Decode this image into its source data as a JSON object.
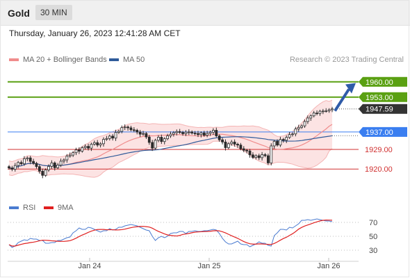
{
  "header": {
    "symbol": "Gold",
    "timeframe": "30 MIN"
  },
  "datetime": "Thursday, January 26, 2023 12:41:28 AM CET",
  "legend": {
    "ma20": {
      "label": "MA 20 + Bollinger Bands",
      "color": "#f08c8c"
    },
    "ma50": {
      "label": "MA 50",
      "color": "#2f5b9a"
    },
    "credit": "Research © 2023 Trading Central"
  },
  "levels": [
    {
      "value": 1960.0,
      "label": "1960.00",
      "kind": "target",
      "color": "#5aa012"
    },
    {
      "value": 1953.0,
      "label": "1953.00",
      "kind": "target",
      "color": "#5aa012"
    },
    {
      "value": 1947.59,
      "label": "1947.59",
      "kind": "last",
      "color": "#333333"
    },
    {
      "value": 1937.0,
      "label": "1937.00",
      "kind": "pivot",
      "color": "#3a7ef0"
    },
    {
      "value": 1929.0,
      "label": "1929.00",
      "kind": "support",
      "color": "#d03030"
    },
    {
      "value": 1920.0,
      "label": "1920.00",
      "kind": "support",
      "color": "#d03030"
    }
  ],
  "rsi_legend": {
    "rsi": {
      "label": "RSI",
      "color": "#4a7bd0"
    },
    "ma9": {
      "label": "9MA",
      "color": "#e02020"
    }
  },
  "rsi_levels": [
    "70",
    "50",
    "30"
  ],
  "xaxis": [
    "Jan 24",
    "Jan 25",
    "Jan 26"
  ],
  "chart_data": {
    "type": "line",
    "price_range": [
      1914,
      1966
    ],
    "rsi_range": [
      20,
      80
    ],
    "close": [
      1920.5,
      1919.9,
      1921.6,
      1923.0,
      1922.4,
      1924.7,
      1925.1,
      1923.5,
      1922.6,
      1921.1,
      1919.0,
      1917.1,
      1919.6,
      1921.2,
      1922.8,
      1920.6,
      1921.8,
      1923.6,
      1924.2,
      1925.9,
      1926.4,
      1927.5,
      1928.8,
      1928.2,
      1929.8,
      1930.4,
      1929.6,
      1931.4,
      1932.1,
      1931.0,
      1931.6,
      1933.6,
      1934.0,
      1935.1,
      1934.2,
      1936.8,
      1937.3,
      1939.0,
      1939.3,
      1938.9,
      1938.0,
      1937.8,
      1937.0,
      1936.0,
      1936.3,
      1934.7,
      1932.2,
      1929.6,
      1933.2,
      1934.6,
      1932.6,
      1933.9,
      1935.2,
      1936.0,
      1936.7,
      1937.2,
      1936.8,
      1936.2,
      1936.9,
      1937.0,
      1936.5,
      1936.3,
      1935.8,
      1936.6,
      1935.5,
      1936.3,
      1936.9,
      1937.8,
      1935.2,
      1933.4,
      1932.4,
      1929.8,
      1931.6,
      1932.4,
      1931.4,
      1931.0,
      1929.3,
      1928.6,
      1928.3,
      1926.5,
      1925.3,
      1926.1,
      1925.2,
      1926.6,
      1926.1,
      1922.8,
      1930.6,
      1932.7,
      1931.0,
      1933.6,
      1933.2,
      1934.5,
      1935.8,
      1936.1,
      1938.4,
      1939.1,
      1939.8,
      1941.8,
      1943.4,
      1944.4,
      1945.7,
      1945.5,
      1946.5,
      1946.6,
      1946.7,
      1947.2,
      1947.6
    ],
    "rsi": [
      38,
      34,
      36,
      41,
      43,
      45,
      44,
      47,
      46,
      46,
      44,
      44,
      40,
      40,
      41,
      41,
      44,
      44,
      46,
      48,
      49,
      55,
      58,
      62,
      60,
      60,
      63,
      62,
      60,
      58,
      56,
      58,
      58,
      61,
      59,
      60,
      63,
      63,
      65,
      66,
      67,
      66,
      65,
      63,
      61,
      59,
      58,
      50,
      44,
      48,
      50,
      48,
      50,
      54,
      55,
      55,
      57,
      57,
      54,
      57,
      57,
      58,
      57,
      57,
      58,
      58,
      59,
      60,
      59,
      54,
      47,
      42,
      39,
      39,
      41,
      43,
      39,
      38,
      38,
      35,
      37,
      39,
      42,
      40,
      40,
      37,
      36,
      51,
      55,
      60,
      60,
      59,
      63,
      62,
      65,
      68,
      73,
      73,
      74,
      73,
      74,
      75,
      74,
      73,
      72,
      72,
      71
    ],
    "annotation": "arrow pointing toward 1960.00 target"
  }
}
